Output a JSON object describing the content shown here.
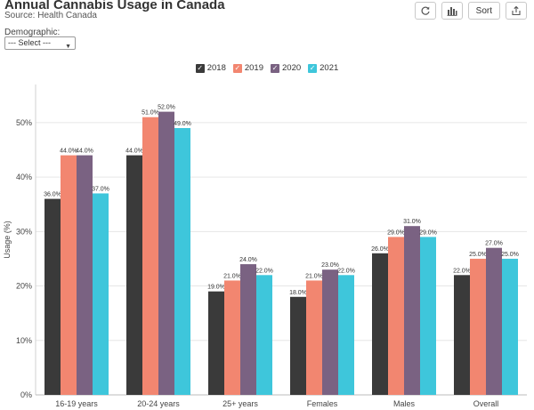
{
  "header": {
    "title": "Annual Cannabis Usage in Canada",
    "source": "Source: Health Canada"
  },
  "toolbar": {
    "sort_label": "Sort"
  },
  "filter": {
    "label": "Demographic:",
    "selected": "--- Select ---"
  },
  "colors": {
    "2018": "#3a3a3a",
    "2019": "#f28670",
    "2020": "#7a6282",
    "2021": "#3ec6db"
  },
  "chart_data": {
    "type": "bar",
    "title": "Annual Cannabis Usage in Canada",
    "ylabel": "Usage (%)",
    "xlabel": "",
    "ylim": [
      0,
      57
    ],
    "yticks": [
      0,
      10,
      20,
      30,
      40,
      50
    ],
    "grid": true,
    "legend_position": "top-center",
    "categories": [
      "16-19 years",
      "20-24 years",
      "25+ years",
      "Females",
      "Males",
      "Overall"
    ],
    "series": [
      {
        "name": "2018",
        "values": [
          36,
          44,
          19,
          18,
          26,
          22
        ]
      },
      {
        "name": "2019",
        "values": [
          44,
          51,
          21,
          21,
          29,
          25
        ]
      },
      {
        "name": "2020",
        "values": [
          44,
          52,
          24,
          23,
          31,
          27
        ]
      },
      {
        "name": "2021",
        "values": [
          37,
          49,
          22,
          22,
          29,
          25
        ]
      }
    ]
  }
}
